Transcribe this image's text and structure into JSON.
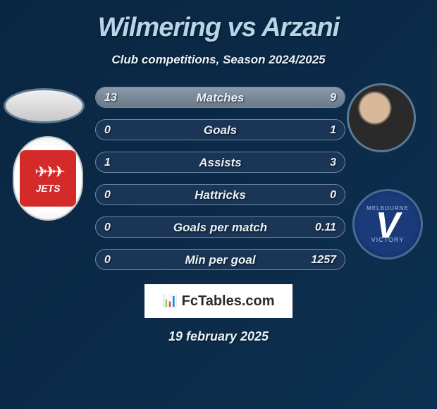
{
  "title": "Wilmering vs Arzani",
  "subtitle": "Club competitions, Season 2024/2025",
  "watermark": {
    "icon": "📊",
    "text": "FcTables.com"
  },
  "date": "19 february 2025",
  "player_left": {
    "name": "Wilmering",
    "club_abbrev": "JETS"
  },
  "player_right": {
    "name": "Arzani",
    "club_top": "MELBOURNE",
    "club_v": "V",
    "club_bot": "VICTORY"
  },
  "colors": {
    "background_start": "#0a2540",
    "background_end": "#0d3050",
    "title": "#b8d4e8",
    "text": "#e8f2f9",
    "bar_fill": "#8a9aa8",
    "bar_bg": "#1a3555",
    "bar_border": "#6a8aa8",
    "left_club_badge": "#d42a2a",
    "right_club_badge": "#1a3a7a",
    "watermark_bg": "#ffffff",
    "watermark_text": "#2a2a2a"
  },
  "typography": {
    "title_size": 38,
    "subtitle_size": 17,
    "stat_label_size": 17,
    "stat_value_size": 16,
    "date_size": 18,
    "style": "italic",
    "weight": "800"
  },
  "stats": [
    {
      "label": "Matches",
      "left_value": "13",
      "right_value": "9",
      "left_num": 13,
      "right_num": 9,
      "left_pct": 50,
      "right_pct": 50
    },
    {
      "label": "Goals",
      "left_value": "0",
      "right_value": "1",
      "left_num": 0,
      "right_num": 1,
      "left_pct": 0,
      "right_pct": 0
    },
    {
      "label": "Assists",
      "left_value": "1",
      "right_value": "3",
      "left_num": 1,
      "right_num": 3,
      "left_pct": 0,
      "right_pct": 0
    },
    {
      "label": "Hattricks",
      "left_value": "0",
      "right_value": "0",
      "left_num": 0,
      "right_num": 0,
      "left_pct": 0,
      "right_pct": 0
    },
    {
      "label": "Goals per match",
      "left_value": "0",
      "right_value": "0.11",
      "left_num": 0,
      "right_num": 0.11,
      "left_pct": 0,
      "right_pct": 0
    },
    {
      "label": "Min per goal",
      "left_value": "0",
      "right_value": "1257",
      "left_num": 0,
      "right_num": 1257,
      "left_pct": 0,
      "right_pct": 0
    }
  ]
}
